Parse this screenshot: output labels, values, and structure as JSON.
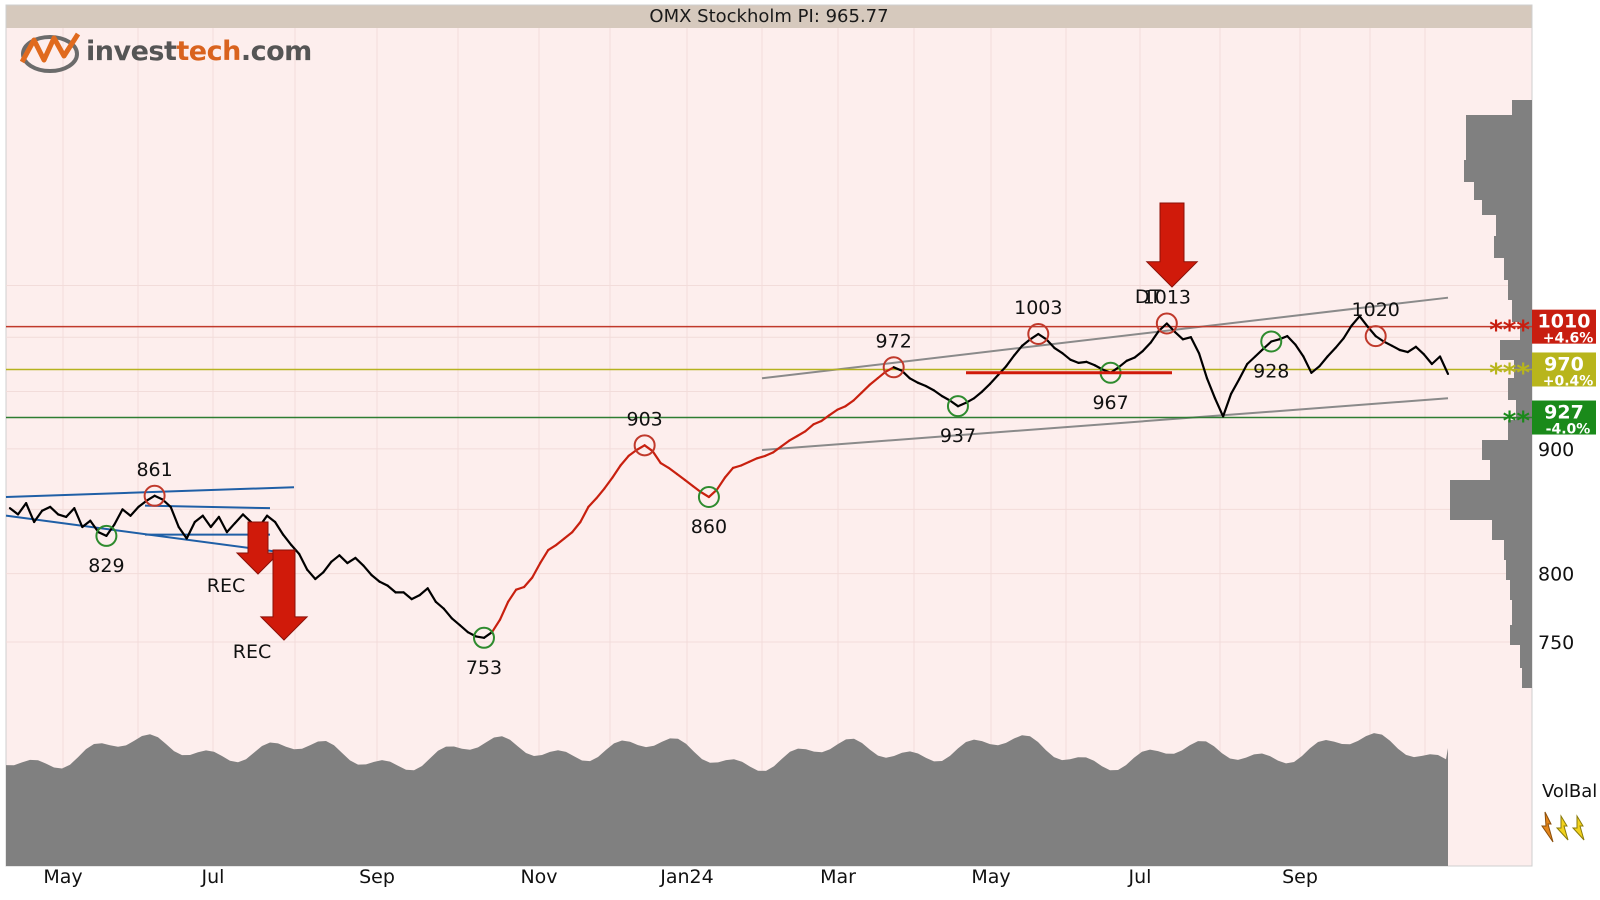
{
  "title": "OMX Stockholm PI: 965.77",
  "logo": {
    "part1": "invest",
    "part2": "tech",
    "part3": ".com"
  },
  "indicator": {
    "label": "VolBal"
  },
  "colors": {
    "background": "#fdeeed",
    "price": "#000000",
    "uptrend": "#c8200f",
    "resistance": "#c0392b",
    "support": "#2e7d32",
    "mid": "#b5b21e",
    "channel": "#8a8a8a",
    "wedge": "#1f5fa6",
    "volume": "#808080",
    "arrow": "#d01a0a"
  },
  "chart_data": {
    "type": "line",
    "y_axis": {
      "ticks": [
        750,
        800,
        900
      ],
      "ylim": [
        740,
        1060
      ]
    },
    "x_axis": {
      "ticks": [
        "May",
        "Jul",
        "Sep",
        "Nov",
        "Jan24",
        "Mar",
        "May",
        "Jul",
        "Sep"
      ]
    },
    "series": [
      {
        "values": [
          851,
          846,
          855,
          840,
          849,
          852,
          846,
          844,
          851,
          836,
          841,
          832,
          829,
          838,
          850,
          845,
          852,
          857,
          861,
          858,
          852,
          836,
          827,
          840,
          845,
          836,
          844,
          832,
          839,
          846,
          840,
          836,
          845,
          840,
          830,
          822,
          815,
          803,
          796,
          801,
          809,
          814,
          808,
          812,
          806,
          799,
          794,
          791,
          786,
          786,
          781,
          784,
          789,
          779,
          774,
          767,
          762,
          757,
          754,
          753,
          757,
          766,
          779,
          788,
          790,
          797,
          808,
          818,
          822,
          827,
          832,
          840,
          852,
          859,
          867,
          876,
          886,
          894,
          899,
          903,
          898,
          888,
          884,
          879,
          874,
          869,
          864,
          860,
          866,
          876,
          884,
          886,
          889,
          892,
          894,
          897,
          902,
          907,
          911,
          915,
          921,
          924,
          929,
          934,
          937,
          942,
          949,
          956,
          962,
          968,
          972,
          969,
          962,
          958,
          955,
          951,
          946,
          942,
          937,
          940,
          944,
          950,
          957,
          965,
          973,
          983,
          992,
          998,
          1003,
          998,
          990,
          985,
          979,
          976,
          977,
          974,
          970,
          967,
          972,
          978,
          981,
          987,
          995,
          1006,
          1013,
          1005,
          998,
          1000,
          985,
          962,
          944,
          928,
          948,
          961,
          975,
          982,
          989,
          996,
          998,
          1001,
          993,
          982,
          967,
          973,
          982,
          990,
          999,
          1011,
          1020,
          1010,
          1001,
          996,
          992,
          988,
          986,
          991,
          984,
          975,
          982,
          966
        ]
      }
    ],
    "key_levels": [
      {
        "label": "1010",
        "pct": "+4.6%",
        "stars": "***",
        "value": 1010
      },
      {
        "label": "970",
        "pct": "+0.4%",
        "stars": "***",
        "value": 970
      },
      {
        "label": "927",
        "pct": "-4.0%",
        "stars": "**",
        "value": 927
      }
    ],
    "annotations": [
      {
        "text": "861",
        "kind": "top"
      },
      {
        "text": "829",
        "kind": "bottom"
      },
      {
        "text": "753",
        "kind": "bottom"
      },
      {
        "text": "903",
        "kind": "top"
      },
      {
        "text": "860",
        "kind": "bottom"
      },
      {
        "text": "972",
        "kind": "top"
      },
      {
        "text": "937",
        "kind": "bottom"
      },
      {
        "text": "1003",
        "kind": "top"
      },
      {
        "text": "967",
        "kind": "bottom"
      },
      {
        "text": "1013",
        "kind": "top"
      },
      {
        "text": "928",
        "kind": "bottom"
      },
      {
        "text": "1020",
        "kind": "top"
      }
    ],
    "patterns": [
      {
        "text": "REC"
      },
      {
        "text": "REC"
      },
      {
        "text": "DT"
      }
    ]
  }
}
